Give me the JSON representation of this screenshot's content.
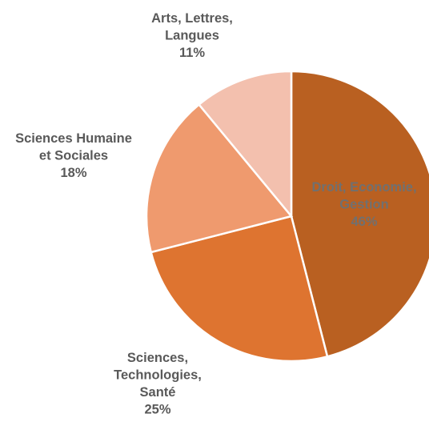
{
  "chart_data": {
    "type": "pie",
    "title": "",
    "slices": [
      {
        "name_lines": [
          "Droit, Economie,",
          "Gestion"
        ],
        "pct_label": "46%",
        "value": 46,
        "color": "#b96021",
        "label_color": "#707070"
      },
      {
        "name_lines": [
          "Sciences,",
          "Technologies,",
          "Santé"
        ],
        "pct_label": "25%",
        "value": 25,
        "color": "#de7430",
        "label_color": "#595959"
      },
      {
        "name_lines": [
          "Sciences Humaine",
          "et Sociales"
        ],
        "pct_label": "18%",
        "value": 18,
        "color": "#ef9a6e",
        "label_color": "#595959"
      },
      {
        "name_lines": [
          "Arts, Lettres,",
          "Langues"
        ],
        "pct_label": "11%",
        "value": 11,
        "color": "#f3c0ae",
        "label_color": "#595959"
      }
    ],
    "start_angle": "12 o'clock",
    "direction": "clockwise",
    "legend": "none"
  }
}
